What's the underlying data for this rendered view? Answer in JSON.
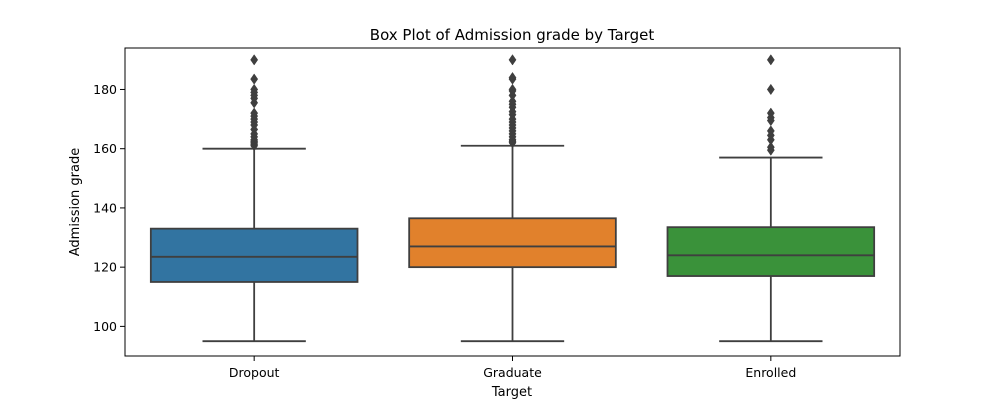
{
  "chart_data": {
    "type": "box",
    "title": "Box Plot of Admission grade by Target",
    "xlabel": "Target",
    "ylabel": "Admission grade",
    "ylim": [
      90,
      194
    ],
    "yticks": [
      100,
      120,
      140,
      160,
      180
    ],
    "grid": false,
    "categories": [
      "Dropout",
      "Graduate",
      "Enrolled"
    ],
    "colors": [
      "#3274a1",
      "#e1812c",
      "#3a923a"
    ],
    "edge_color": "#3f3f3f",
    "boxes": [
      {
        "category": "Dropout",
        "min": 95,
        "q1": 115,
        "median": 123.5,
        "q3": 133,
        "max": 160,
        "outliers": [
          161,
          161.5,
          162,
          162.5,
          163,
          164,
          165,
          166.5,
          168,
          169,
          170,
          171,
          172,
          175.5,
          177,
          178,
          179,
          180,
          183.5,
          190
        ]
      },
      {
        "category": "Graduate",
        "min": 95,
        "q1": 120,
        "median": 127,
        "q3": 136.5,
        "max": 161,
        "outliers": [
          162,
          162.5,
          163,
          164,
          165,
          166,
          167,
          168,
          169,
          170,
          171.5,
          172.5,
          174,
          175,
          176,
          178,
          179.5,
          180,
          183.5,
          184,
          190
        ]
      },
      {
        "category": "Enrolled",
        "min": 95,
        "q1": 117,
        "median": 124,
        "q3": 133.5,
        "max": 157,
        "outliers": [
          159.5,
          160.5,
          163,
          164.5,
          166,
          169.5,
          170.5,
          172,
          180,
          190
        ]
      }
    ]
  }
}
